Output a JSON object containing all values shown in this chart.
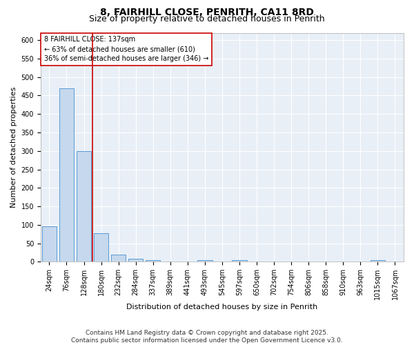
{
  "title1": "8, FAIRHILL CLOSE, PENRITH, CA11 8RD",
  "title2": "Size of property relative to detached houses in Penrith",
  "xlabel": "Distribution of detached houses by size in Penrith",
  "ylabel": "Number of detached properties",
  "categories": [
    "24sqm",
    "76sqm",
    "128sqm",
    "180sqm",
    "232sqm",
    "284sqm",
    "337sqm",
    "389sqm",
    "441sqm",
    "493sqm",
    "545sqm",
    "597sqm",
    "650sqm",
    "702sqm",
    "754sqm",
    "806sqm",
    "858sqm",
    "910sqm",
    "963sqm",
    "1015sqm",
    "1067sqm"
  ],
  "values": [
    95,
    470,
    300,
    78,
    20,
    8,
    5,
    0,
    0,
    5,
    0,
    5,
    0,
    0,
    0,
    0,
    0,
    0,
    0,
    5,
    0
  ],
  "bar_color": "#c5d8ed",
  "bar_edge_color": "#5b9bd5",
  "red_line_index": 2,
  "red_line_color": "#cc0000",
  "annotation_line1": "8 FAIRHILL CLOSE: 137sqm",
  "annotation_line2": "← 63% of detached houses are smaller (610)",
  "annotation_line3": "36% of semi-detached houses are larger (346) →",
  "annotation_box_color": "#ffffff",
  "annotation_box_edge": "#cc0000",
  "ylim": [
    0,
    620
  ],
  "yticks": [
    0,
    50,
    100,
    150,
    200,
    250,
    300,
    350,
    400,
    450,
    500,
    550,
    600
  ],
  "bg_color": "#e8eff7",
  "grid_color": "#ffffff",
  "footer": "Contains HM Land Registry data © Crown copyright and database right 2025.\nContains public sector information licensed under the Open Government Licence v3.0.",
  "title1_fontsize": 10,
  "title2_fontsize": 9,
  "axis_label_fontsize": 8,
  "tick_fontsize": 7,
  "footer_fontsize": 6.5
}
